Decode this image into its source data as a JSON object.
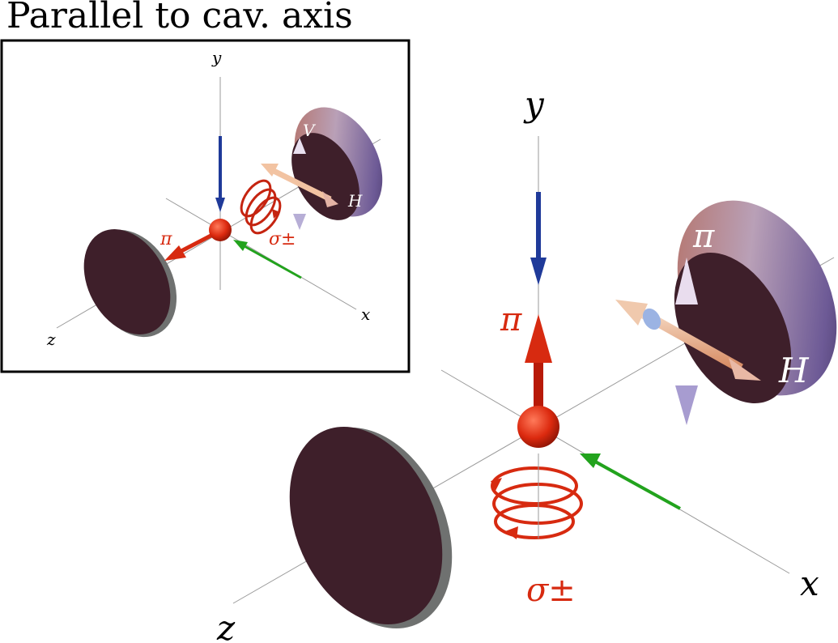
{
  "title": "Parallel to cav. axis",
  "inset": {
    "axis_labels": {
      "x": "x",
      "y": "y",
      "z": "z"
    },
    "labels": {
      "pi": "π",
      "sigma": "σ±",
      "V": "V",
      "H": "H"
    }
  },
  "main": {
    "axis_labels": {
      "x": "x",
      "y": "y",
      "z": "z"
    },
    "labels": {
      "pi_red": "π",
      "pi_mirror": "π",
      "sigma": "σ±",
      "H": "H"
    }
  },
  "colors": {
    "red": "#d72a10",
    "blue": "#1f3a99",
    "green": "#22a31d",
    "mirror_dark": "#3e1f2a",
    "mirror_rim": "#6f7170",
    "arrow_light": "#dcc9e2",
    "arrow_peach": "#f2c3a2"
  }
}
